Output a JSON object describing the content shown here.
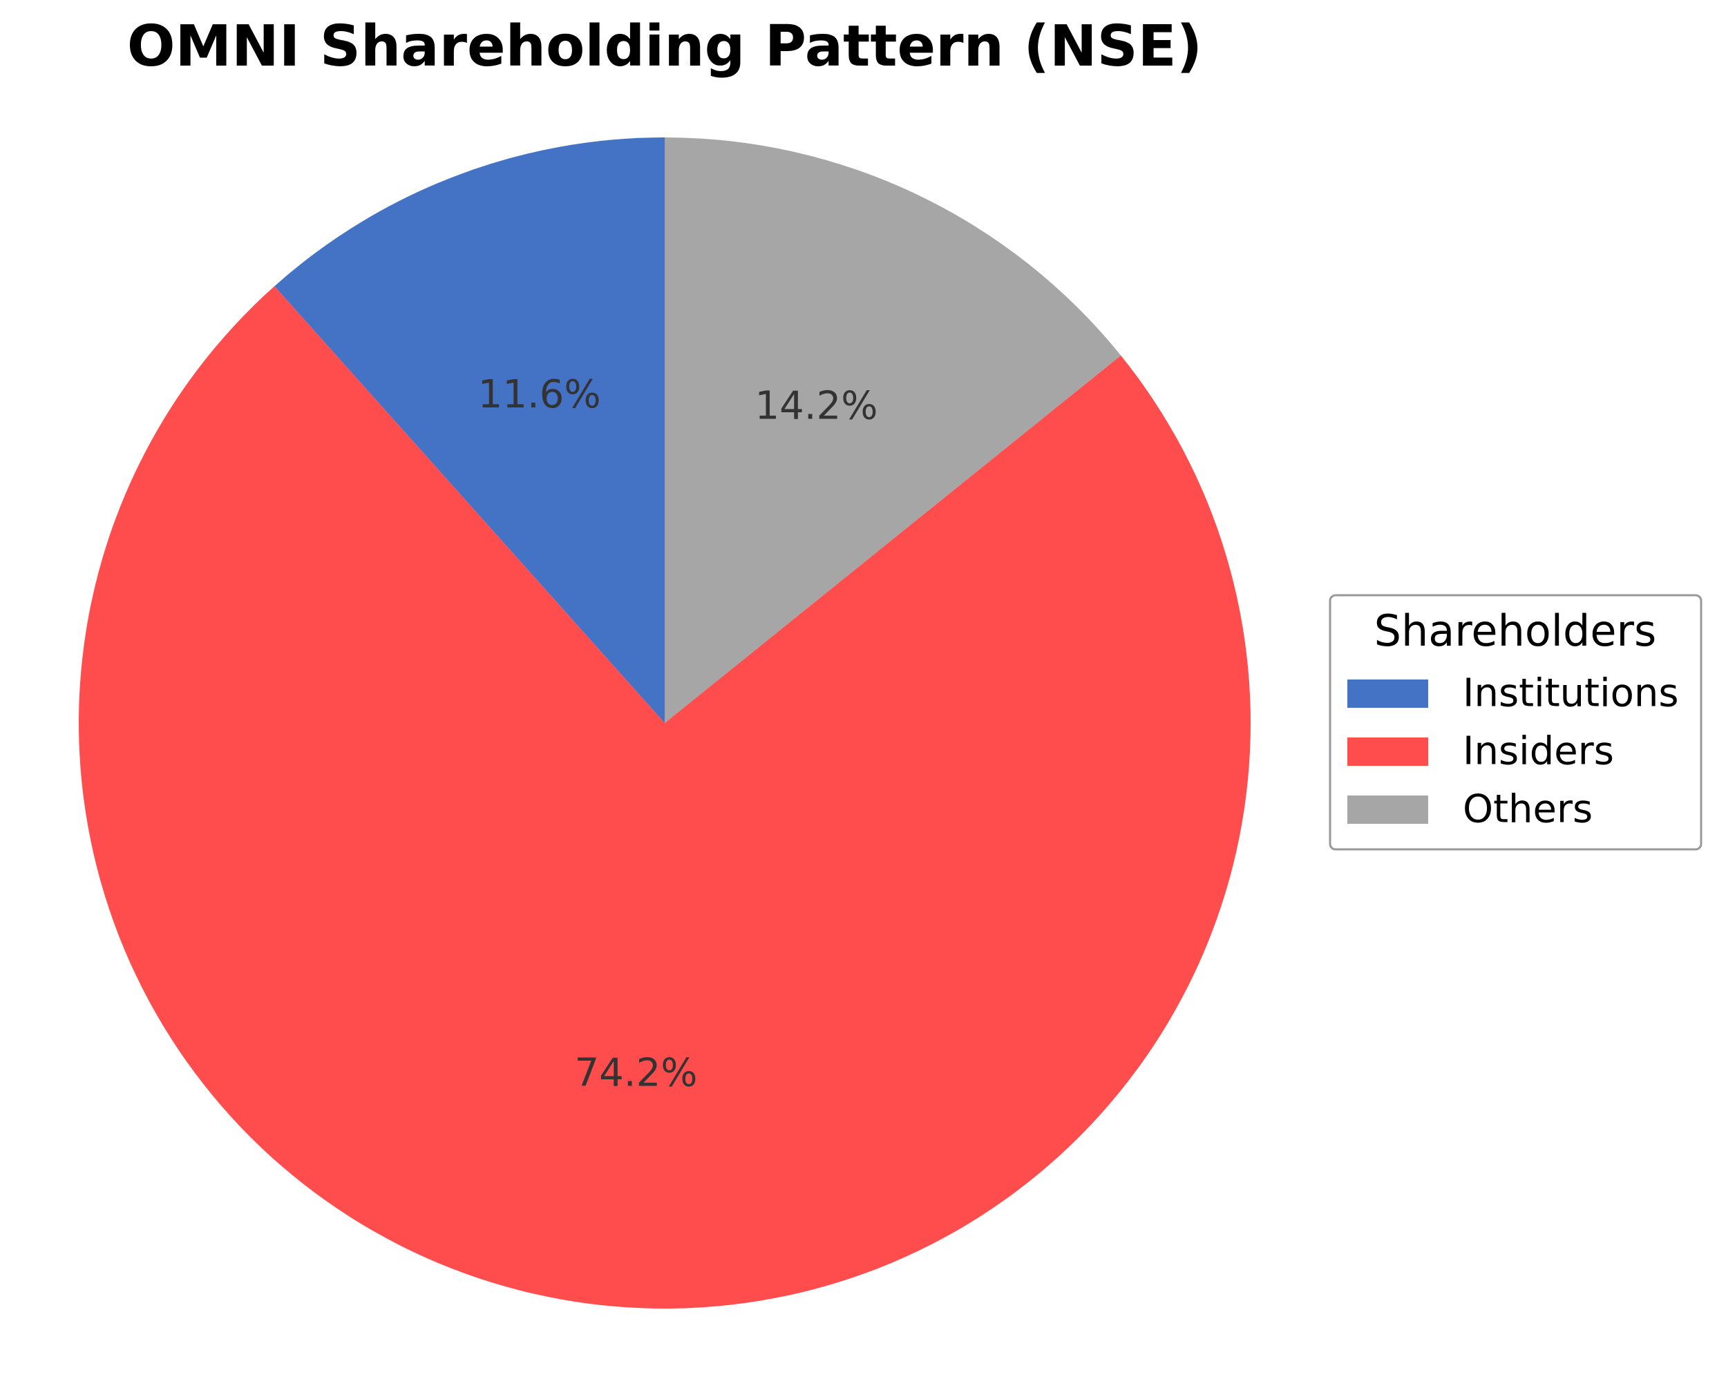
{
  "chart_data": {
    "type": "pie",
    "title": "OMNI Shareholding Pattern (NSE)",
    "categories": [
      "Institutions",
      "Insiders",
      "Others"
    ],
    "values": [
      11.6,
      74.2,
      14.2
    ],
    "slice_labels": [
      "11.6%",
      "74.2%",
      "14.2%"
    ],
    "colors": [
      "#4472C4",
      "#FF4D4D",
      "#A6A6A6"
    ],
    "start_angle_deg": 90,
    "direction": "counterclockwise",
    "legend": {
      "title": "Shareholders",
      "placement": "center-right",
      "entries": [
        "Institutions",
        "Insiders",
        "Others"
      ]
    }
  }
}
